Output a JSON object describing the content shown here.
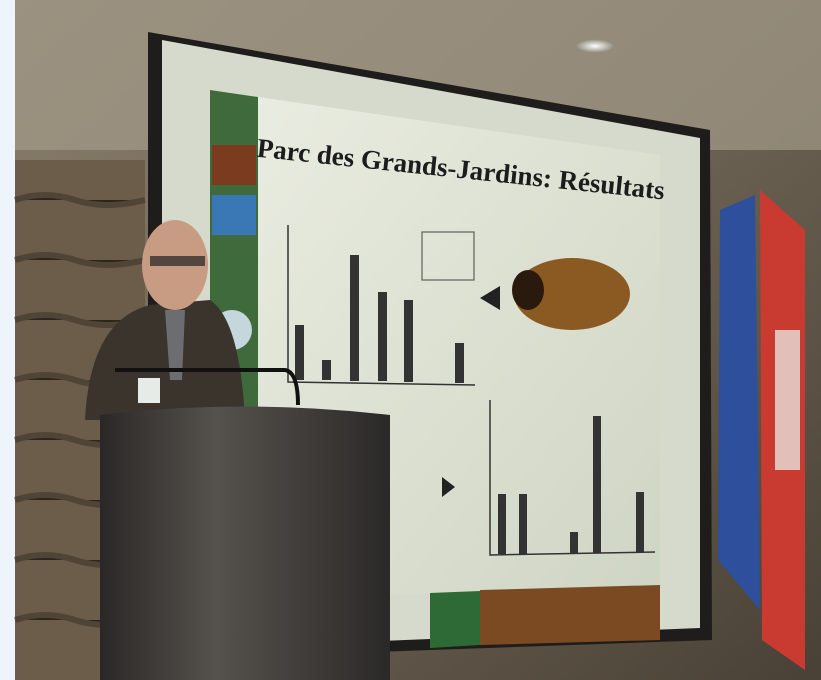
{
  "slide": {
    "title": "Parc des Grands-Jardins: Résultats"
  }
}
